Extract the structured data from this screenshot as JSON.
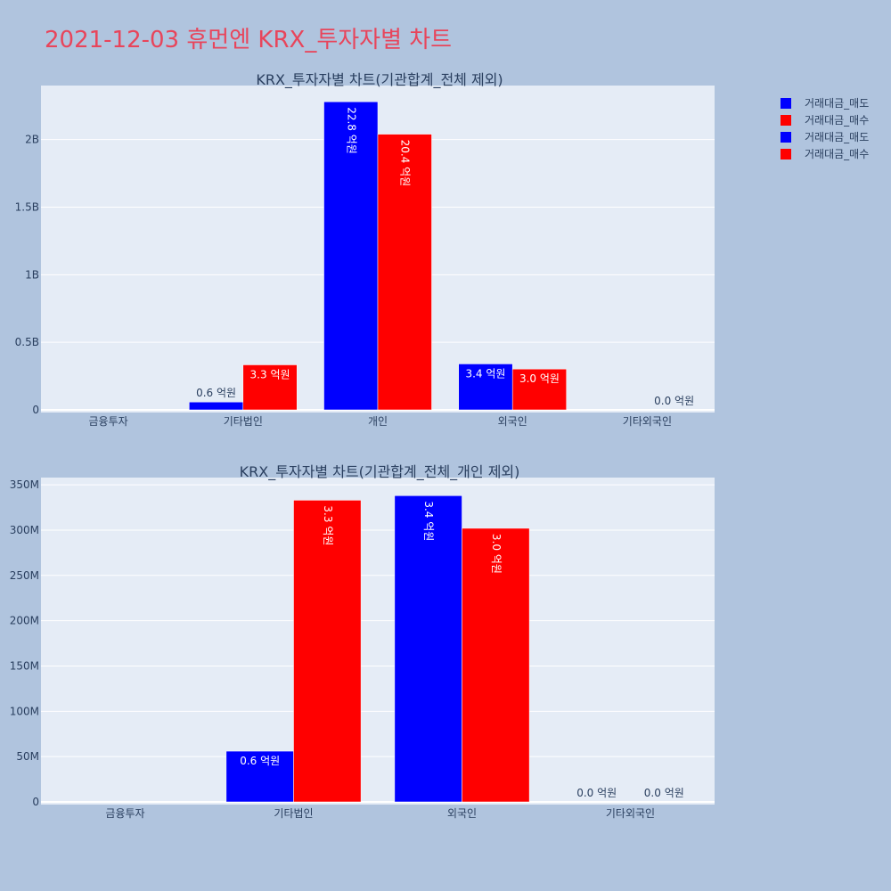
{
  "page_title": "2021-12-03 휴먼엔 KRX_투자자별 차트",
  "colors": {
    "sell": "#0000ff",
    "buy": "#ff0000",
    "plot_bg": "#e5ecf6",
    "page_bg": "#b0c4de",
    "title": "#e8455b"
  },
  "legend": [
    {
      "label": "거래대금_매도",
      "color": "#0000ff"
    },
    {
      "label": "거래대금_매수",
      "color": "#ff0000"
    },
    {
      "label": "거래대금_매도",
      "color": "#0000ff"
    },
    {
      "label": "거래대금_매수",
      "color": "#ff0000"
    }
  ],
  "chart_data": [
    {
      "type": "bar",
      "title": "KRX_투자자별 차트(기관합계_전체 제외)",
      "categories": [
        "금융투자",
        "기타법인",
        "개인",
        "외국인",
        "기타외국인"
      ],
      "yticks": [
        0,
        500000000,
        1000000000,
        1500000000,
        2000000000
      ],
      "ytick_labels": [
        "0",
        "0.5B",
        "1B",
        "1.5B",
        "2B"
      ],
      "ylim": [
        0,
        2400000000
      ],
      "series": [
        {
          "name": "거래대금_매도",
          "color": "#0000ff",
          "values": [
            null,
            58000000,
            2280000000,
            340000000,
            null
          ],
          "labels": [
            "",
            "0.6 억원",
            "22.8 억원",
            "3.4 억원",
            ""
          ]
        },
        {
          "name": "거래대금_매수",
          "color": "#ff0000",
          "values": [
            null,
            333000000,
            2040000000,
            302000000,
            0
          ],
          "labels": [
            "",
            "3.3 억원",
            "20.4 억원",
            "3.0 억원",
            "0.0 억원"
          ]
        }
      ]
    },
    {
      "type": "bar",
      "title": "KRX_투자자별 차트(기관합계_전체_개인 제외)",
      "categories": [
        "금융투자",
        "기타법인",
        "외국인",
        "기타외국인"
      ],
      "yticks": [
        0,
        50000000,
        100000000,
        150000000,
        200000000,
        250000000,
        300000000,
        350000000
      ],
      "ytick_labels": [
        "0",
        "50M",
        "100M",
        "150M",
        "200M",
        "250M",
        "300M",
        "350M"
      ],
      "ylim": [
        0,
        358000000
      ],
      "series": [
        {
          "name": "거래대금_매도",
          "color": "#0000ff",
          "values": [
            null,
            56000000,
            338000000,
            0
          ],
          "labels": [
            "",
            "0.6 억원",
            "3.4 억원",
            "0.0 억원"
          ]
        },
        {
          "name": "거래대금_매수",
          "color": "#ff0000",
          "values": [
            null,
            333000000,
            302000000,
            0
          ],
          "labels": [
            "",
            "3.3 억원",
            "3.0 억원",
            "0.0 억원"
          ]
        }
      ]
    }
  ]
}
